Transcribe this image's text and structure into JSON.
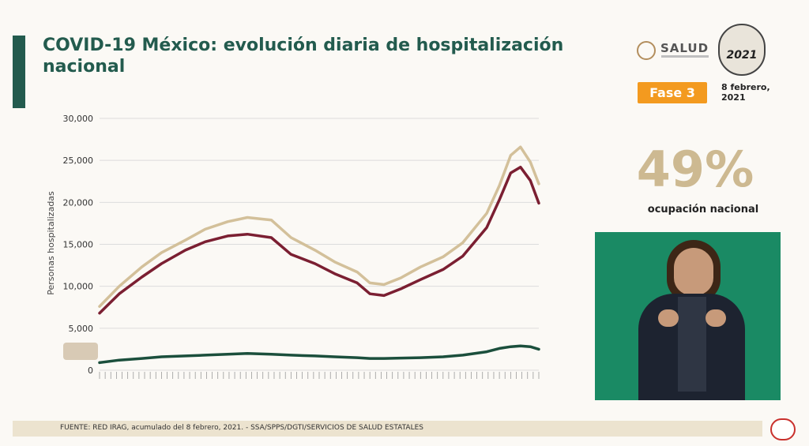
{
  "header": {
    "title": "COVID-19 México: evolución diaria de hospitalización nacional",
    "salud": "SALUD",
    "seal_year": "2021",
    "fase": "Fase 3",
    "date": "8 febrero, 2021"
  },
  "kpi": {
    "value": "49%",
    "label": "ocupación nacional"
  },
  "footer": {
    "source": "FUENTE: RED IRAG, acumulado del 8 febrero, 2021.  -  SSA/SPPS/DGTI/SERVICIOS DE SALUD ESTATALES"
  },
  "colors": {
    "total": "#d3c09a",
    "general": "#7b1f32",
    "intubated": "#1b4f3c",
    "brand": "#235b4e",
    "fase": "#f39a1f"
  },
  "chart_data": {
    "type": "line",
    "ylabel": "Personas hospitalizadas",
    "ylim": [
      0,
      30000
    ],
    "yticks": [
      "0",
      "5,000",
      "10,000",
      "15,000",
      "20,000",
      "25,000",
      "30,000"
    ],
    "ytick_values": [
      0,
      5000,
      10000,
      15000,
      20000,
      25000,
      30000
    ],
    "xlabel": "",
    "x_start": "2020-04-01",
    "x_end": "2021-02-07",
    "grid": true,
    "series": [
      {
        "color": "#d3c09a",
        "x": [
          "2020-04-01",
          "2020-04-15",
          "2020-05-01",
          "2020-05-15",
          "2020-06-01",
          "2020-06-15",
          "2020-07-01",
          "2020-07-15",
          "2020-08-01",
          "2020-08-15",
          "2020-09-01",
          "2020-09-15",
          "2020-10-01",
          "2020-10-10",
          "2020-10-20",
          "2020-11-01",
          "2020-11-15",
          "2020-12-01",
          "2020-12-15",
          "2021-01-01",
          "2021-01-10",
          "2021-01-18",
          "2021-01-25",
          "2021-02-01",
          "2021-02-07"
        ],
        "values": [
          7600,
          10000,
          12300,
          14000,
          15500,
          16800,
          17700,
          18200,
          17900,
          15800,
          14300,
          12900,
          11700,
          10400,
          10200,
          11000,
          12300,
          13500,
          15200,
          18700,
          22000,
          25600,
          26600,
          24800,
          22200
        ]
      },
      {
        "color": "#7b1f32",
        "x": [
          "2020-04-01",
          "2020-04-15",
          "2020-05-01",
          "2020-05-15",
          "2020-06-01",
          "2020-06-15",
          "2020-07-01",
          "2020-07-15",
          "2020-08-01",
          "2020-08-15",
          "2020-09-01",
          "2020-09-15",
          "2020-10-01",
          "2020-10-10",
          "2020-10-20",
          "2020-11-01",
          "2020-11-15",
          "2020-12-01",
          "2020-12-15",
          "2021-01-01",
          "2021-01-10",
          "2021-01-18",
          "2021-01-25",
          "2021-02-01",
          "2021-02-07"
        ],
        "values": [
          6800,
          9100,
          11100,
          12700,
          14300,
          15300,
          16000,
          16200,
          15800,
          13800,
          12700,
          11500,
          10400,
          9100,
          8900,
          9700,
          10800,
          12000,
          13600,
          17000,
          20300,
          23500,
          24200,
          22600,
          19900
        ]
      },
      {
        "color": "#1b4f3c",
        "x": [
          "2020-04-01",
          "2020-04-15",
          "2020-05-01",
          "2020-05-15",
          "2020-06-01",
          "2020-06-15",
          "2020-07-01",
          "2020-07-15",
          "2020-08-01",
          "2020-08-15",
          "2020-09-01",
          "2020-09-15",
          "2020-10-01",
          "2020-10-10",
          "2020-10-20",
          "2020-11-01",
          "2020-11-15",
          "2020-12-01",
          "2020-12-15",
          "2021-01-01",
          "2021-01-10",
          "2021-01-18",
          "2021-01-25",
          "2021-02-01",
          "2021-02-07"
        ],
        "values": [
          900,
          1200,
          1400,
          1600,
          1700,
          1800,
          1900,
          2000,
          1900,
          1800,
          1700,
          1600,
          1500,
          1400,
          1400,
          1450,
          1500,
          1600,
          1800,
          2200,
          2600,
          2800,
          2900,
          2800,
          2500
        ]
      }
    ]
  }
}
